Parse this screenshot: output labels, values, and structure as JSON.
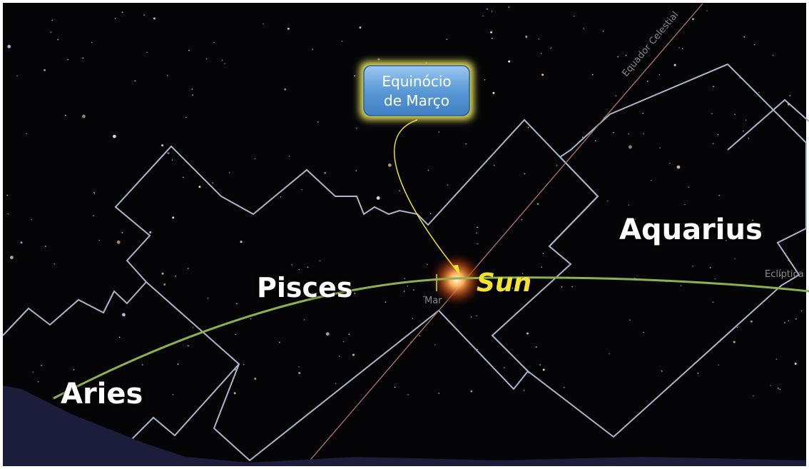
{
  "labels": {
    "equator": "Equador Celestial",
    "ecliptic": "Eclíptica",
    "aries": "Aries",
    "pisces": "Pisces",
    "aquarius": "Aquarius",
    "sun": "Sun",
    "march_point": "Mar"
  },
  "callout": {
    "lines": [
      "Equinócio",
      "de Março"
    ]
  }
}
